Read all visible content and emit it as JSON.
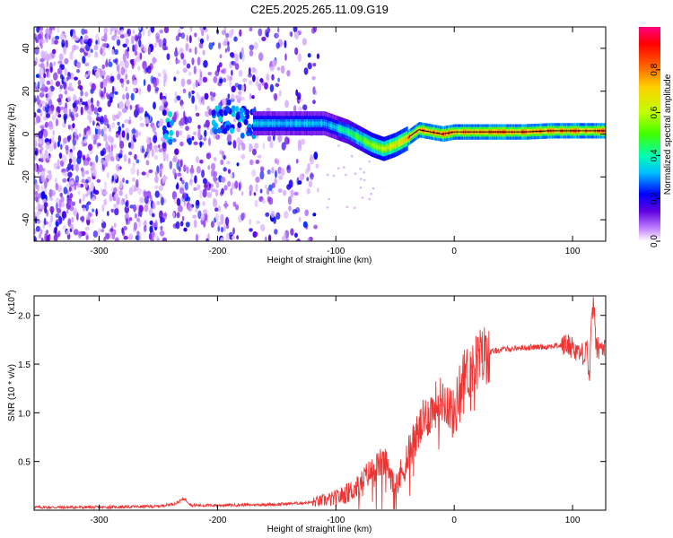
{
  "title": "C2E5.2025.265.11.09.G19",
  "chart_data": [
    {
      "type": "heatmap",
      "title": "C2E5.2025.265.11.09.G19",
      "xlabel": "Height of straight line (km)",
      "ylabel": "Frequency (Hz)",
      "xlim": [
        -355,
        128
      ],
      "ylim": [
        -50,
        50
      ],
      "xticks": [
        -300,
        -200,
        -100,
        0,
        100
      ],
      "xtick_labels": [
        "-300",
        "-200",
        "-100",
        "0",
        "100"
      ],
      "yticks": [
        -40,
        -20,
        0,
        20,
        40
      ],
      "ytick_labels": [
        "-40",
        "-20",
        "0",
        "20",
        "40"
      ],
      "colorbar": {
        "label": "Normalized spectral amplitude",
        "range": [
          0,
          1
        ],
        "ticks": [
          0.0,
          0.2,
          0.4,
          0.6,
          0.8
        ],
        "tick_labels": [
          "0.0",
          "0.2",
          "0.4",
          "0.6",
          "0.8"
        ],
        "colormap": [
          "#ffffff",
          "#c080ff",
          "#6000e0",
          "#0000ff",
          "#00c0ff",
          "#00ffb0",
          "#40ff00",
          "#c0ff00",
          "#ffd000",
          "#ff6000",
          "#ff0000",
          "#ff0080"
        ]
      },
      "dominant_frequency_track": {
        "x": [
          -170,
          -150,
          -130,
          -110,
          -100,
          -90,
          -80,
          -70,
          -60,
          -50,
          -40,
          -35,
          -30,
          -20,
          -10,
          0,
          20,
          40,
          60,
          80,
          100,
          120,
          128
        ],
        "y": [
          5,
          5,
          5,
          5,
          3,
          1,
          -2,
          -5,
          -7,
          -5,
          -2,
          0,
          2,
          1,
          0,
          1,
          1,
          1,
          1,
          1.5,
          1.5,
          1.5,
          1.5
        ]
      },
      "background_noise_extent": [
        -355,
        -115
      ]
    },
    {
      "type": "line",
      "xlabel": "Height of straight line (km)",
      "ylabel": "SNR (10 * v/v)",
      "yscale_label": "(x10",
      "yscale_exponent": "4",
      "xlim": [
        -355,
        128
      ],
      "ylim": [
        0,
        2.2
      ],
      "xticks": [
        -300,
        -200,
        -100,
        0,
        100
      ],
      "xtick_labels": [
        "-300",
        "-200",
        "-100",
        "0",
        "100"
      ],
      "yticks": [
        0.5,
        1.0,
        1.5,
        2.0
      ],
      "ytick_labels": [
        "0.5",
        "1.0",
        "1.5",
        "2.0"
      ],
      "series": [
        {
          "name": "SNR",
          "color": "#ee3333",
          "x": [
            -355,
            -300,
            -250,
            -235,
            -228,
            -222,
            -200,
            -150,
            -120,
            -100,
            -90,
            -80,
            -75,
            -70,
            -65,
            -60,
            -55,
            -50,
            -45,
            -40,
            -35,
            -30,
            -25,
            -20,
            -15,
            -10,
            -5,
            0,
            5,
            10,
            15,
            20,
            25,
            30,
            40,
            50,
            60,
            80,
            95,
            100,
            105,
            110,
            112,
            114,
            116,
            118,
            120,
            128
          ],
          "y": [
            0.03,
            0.03,
            0.04,
            0.07,
            0.12,
            0.05,
            0.05,
            0.06,
            0.08,
            0.12,
            0.18,
            0.25,
            0.35,
            0.4,
            0.45,
            0.5,
            0.42,
            0.3,
            0.35,
            0.55,
            0.7,
            0.8,
            0.95,
            1.0,
            1.1,
            1.15,
            1.1,
            0.95,
            1.3,
            1.4,
            1.45,
            1.55,
            1.6,
            1.62,
            1.65,
            1.66,
            1.67,
            1.68,
            1.7,
            1.68,
            1.62,
            1.6,
            1.75,
            1.3,
            1.9,
            2.15,
            1.66,
            1.66
          ]
        }
      ]
    }
  ]
}
